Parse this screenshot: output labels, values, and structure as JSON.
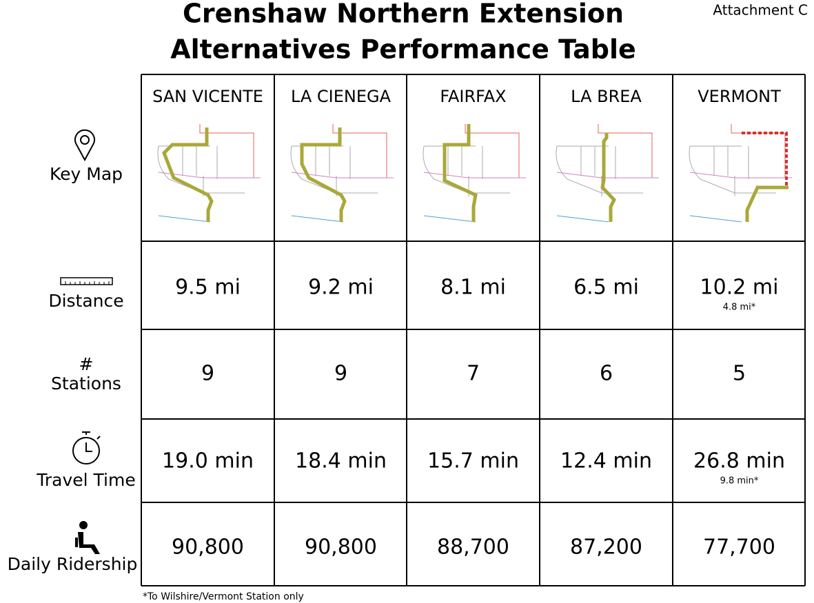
{
  "header": {
    "title_lines": [
      "Crenshaw Northern Extension",
      "Alternatives Performance Table"
    ],
    "attachment": "Attachment C"
  },
  "table": {
    "columns": [
      "SAN VICENTE",
      "LA CIENEGA",
      "FAIRFAX",
      "LA BREA",
      "VERMONT"
    ],
    "key_map_label": "Key Map",
    "rows": [
      {
        "label": "Distance",
        "values": [
          {
            "main": "9.5 mi"
          },
          {
            "main": "9.2 mi"
          },
          {
            "main": "8.1 mi"
          },
          {
            "main": "6.5 mi"
          },
          {
            "main": "10.2 mi",
            "note": "4.8 mi*"
          }
        ]
      },
      {
        "symbol": "#",
        "label": "Stations",
        "values": [
          {
            "main": "9"
          },
          {
            "main": "9"
          },
          {
            "main": "7"
          },
          {
            "main": "6"
          },
          {
            "main": "5"
          }
        ]
      },
      {
        "label": "Travel Time",
        "values": [
          {
            "main": "19.0 min"
          },
          {
            "main": "18.4 min"
          },
          {
            "main": "15.7 min"
          },
          {
            "main": "12.4 min"
          },
          {
            "main": "26.8 min",
            "note": "9.8 min*"
          }
        ]
      },
      {
        "label": "Daily Ridership",
        "values": [
          {
            "main": "90,800"
          },
          {
            "main": "90,800"
          },
          {
            "main": "88,700"
          },
          {
            "main": "87,200"
          },
          {
            "main": "77,700"
          }
        ]
      }
    ]
  },
  "footnote": "*To Wilshire/Vermont Station only"
}
